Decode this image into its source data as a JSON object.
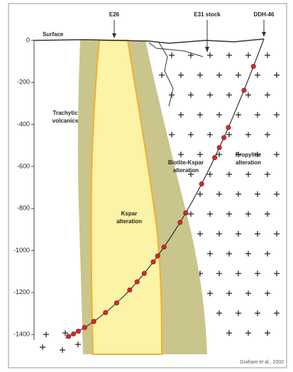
{
  "labels": {
    "surface": "Surface",
    "e26": "E26",
    "e31": "E31 stock",
    "ddh": "DDH-46",
    "trachytic": [
      "Trachytic",
      "volcanics"
    ],
    "biotite": [
      "Biotite-Kspar",
      "alteration"
    ],
    "propylitic": [
      "Propylitic",
      "alteration"
    ],
    "kspar": [
      "Kspar",
      "alteration"
    ],
    "credit": "Graham et al., 2002"
  },
  "depth_ticks": [
    "0",
    "-200",
    "-400",
    "-600",
    "-800",
    "-1000",
    "-1200",
    "-1400"
  ]
}
